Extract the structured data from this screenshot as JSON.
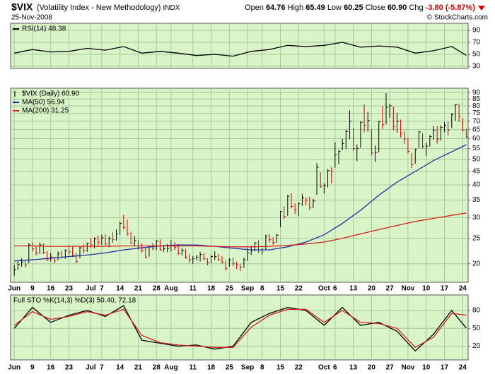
{
  "header": {
    "symbol": "$VIX",
    "name": "(Volatility Index - New Methodology)",
    "exchange": "INDX",
    "date": "25-Nov-2008",
    "quote": [
      [
        "Open",
        "64.76"
      ],
      [
        "High",
        "65.49"
      ],
      [
        "Low",
        "60.25"
      ],
      [
        "Close",
        "60.90"
      ],
      [
        "Chg",
        "-3.80 (-5.87%)"
      ]
    ],
    "copyright": "© StockCharts.com"
  },
  "chart_data": [
    {
      "type": "line",
      "ylim": [
        26.5,
        101.8
      ],
      "yticks": [
        30,
        50,
        70,
        90
      ],
      "grid": true,
      "series": [
        {
          "name": "RSI(14) 48.38",
          "color": "#000000",
          "x": [
            0,
            5,
            10,
            15,
            20,
            25,
            30,
            35,
            40,
            45,
            50,
            55,
            60,
            65,
            70,
            75,
            80,
            85,
            90,
            95,
            100,
            105,
            110,
            115,
            120,
            124
          ],
          "values": [
            52,
            58,
            54,
            55,
            60,
            57,
            63,
            52,
            55,
            52,
            48,
            50,
            47,
            55,
            58,
            65,
            63,
            65,
            70,
            62,
            64,
            62,
            52,
            56,
            63,
            48.38
          ]
        }
      ]
    },
    {
      "type": "ohlc",
      "log_scale": true,
      "grid": true,
      "ylim": [
        17,
        93.5
      ],
      "yticks": [
        20,
        25,
        30,
        35,
        40,
        45,
        50,
        55,
        60,
        65,
        70,
        75,
        80,
        85,
        90
      ],
      "xlim": [
        -1,
        124.5
      ],
      "xticks": [
        {
          "value": 0,
          "label": "Jun"
        },
        {
          "value": 5,
          "label": "9"
        },
        {
          "value": 10,
          "label": "16"
        },
        {
          "value": 15,
          "label": "23"
        },
        {
          "value": 21,
          "label": "Jul"
        },
        {
          "value": 24,
          "label": "7"
        },
        {
          "value": 29,
          "label": "14"
        },
        {
          "value": 34,
          "label": "21"
        },
        {
          "value": 39,
          "label": "28"
        },
        {
          "value": 43,
          "label": "Aug"
        },
        {
          "value": 49,
          "label": "11"
        },
        {
          "value": 54,
          "label": "18"
        },
        {
          "value": 59,
          "label": "25"
        },
        {
          "value": 64,
          "label": "Sep"
        },
        {
          "value": 68,
          "label": "8"
        },
        {
          "value": 73,
          "label": "15"
        },
        {
          "value": 78,
          "label": "22"
        },
        {
          "value": 85,
          "label": "Oct"
        },
        {
          "value": 88,
          "label": "6"
        },
        {
          "value": 93,
          "label": "13"
        },
        {
          "value": 98,
          "label": "20"
        },
        {
          "value": 103,
          "label": "27"
        },
        {
          "value": 108,
          "label": "Nov"
        },
        {
          "value": 113,
          "label": "10"
        },
        {
          "value": 118,
          "label": "17"
        },
        {
          "value": 123,
          "label": "24"
        }
      ],
      "ohlc": {
        "name": "$VIX (Daily) 60.90",
        "up_color": "#000000",
        "down_color": "#cc0000",
        "high": [
          19.8,
          20.4,
          21.0,
          20.5,
          24.0,
          24.2,
          23.5,
          24.1,
          23.9,
          22.3,
          22.0,
          21.3,
          22.3,
          22.4,
          22.7,
          23.5,
          23.3,
          22.0,
          23.4,
          23.8,
          24.1,
          25.0,
          25.2,
          25.6,
          25.8,
          25.9,
          25.4,
          26.4,
          27.1,
          29.0,
          30.8,
          29.5,
          26.5,
          25.5,
          24.6,
          23.9,
          23.1,
          23.5,
          24.0,
          24.6,
          24.8,
          23.6,
          23.8,
          24.6,
          24.2,
          23.8,
          23.0,
          22.8,
          21.8,
          21.4,
          21.6,
          22.2,
          22.0,
          21.0,
          21.6,
          22.3,
          21.8,
          21.4,
          20.6,
          21.0,
          21.1,
          20.4,
          20.0,
          21.1,
          23.0,
          23.4,
          24.2,
          24.6,
          23.0,
          25.8,
          26.0,
          25.2,
          26.0,
          31.8,
          33.1,
          36.6,
          37.2,
          34.0,
          34.3,
          37.0,
          35.8,
          36.0,
          35.4,
          48.4,
          44.6,
          40.6,
          45.9,
          46.8,
          58.2,
          54.2,
          60.0,
          64.9,
          76.9,
          66.0,
          57.0,
          69.9,
          81.2,
          75.9,
          65.2,
          56.5,
          70.0,
          80.1,
          89.5,
          81.5,
          79.6,
          75.4,
          71.0,
          64.0,
          60.5,
          53.0,
          55.0,
          64.2,
          62.8,
          58.0,
          62.0,
          67.0,
          67.0,
          67.5,
          69.5,
          69.7,
          75.0,
          81.5,
          81.5,
          72.0,
          65.49
        ],
        "low": [
          18.0,
          18.9,
          19.5,
          19.3,
          20.1,
          22.2,
          21.5,
          21.8,
          21.8,
          20.5,
          20.4,
          20.1,
          20.6,
          20.9,
          20.9,
          21.5,
          21.2,
          20.1,
          21.0,
          21.9,
          22.2,
          23.0,
          22.9,
          23.4,
          23.6,
          23.4,
          23.1,
          24.0,
          24.5,
          25.8,
          27.0,
          25.6,
          23.8,
          23.5,
          22.6,
          22.0,
          21.0,
          21.3,
          22.5,
          22.6,
          22.4,
          22.2,
          22.1,
          22.3,
          22.5,
          21.6,
          21.5,
          20.9,
          20.2,
          20.0,
          20.6,
          20.4,
          20.6,
          19.7,
          20.1,
          20.7,
          20.5,
          20.0,
          18.8,
          19.5,
          19.6,
          19.1,
          18.8,
          19.3,
          20.5,
          21.6,
          22.3,
          22.0,
          21.7,
          22.5,
          24.1,
          23.6,
          24.0,
          27.6,
          29.6,
          30.5,
          32.5,
          31.0,
          30.4,
          33.2,
          33.4,
          32.0,
          32.6,
          36.6,
          38.9,
          37.0,
          39.1,
          40.6,
          46.5,
          47.9,
          54.3,
          54.8,
          59.8,
          54.0,
          49.3,
          55.4,
          63.5,
          63.8,
          51.8,
          48.9,
          53.2,
          65.3,
          68.0,
          72.1,
          64.5,
          63.3,
          60.6,
          57.3,
          52.7,
          46.3,
          48.2,
          55.2,
          55.0,
          51.5,
          56.0,
          59.5,
          57.5,
          59.0,
          63.5,
          61.7,
          66.0,
          70.2,
          69.6,
          64.0,
          60.25
        ],
        "close": [
          19.0,
          19.9,
          20.3,
          19.8,
          23.6,
          22.8,
          22.0,
          23.6,
          22.1,
          20.7,
          21.2,
          20.5,
          21.8,
          21.2,
          22.4,
          22.2,
          21.6,
          20.4,
          23.0,
          22.5,
          23.9,
          23.6,
          24.9,
          24.2,
          25.1,
          23.8,
          24.9,
          24.7,
          26.0,
          28.5,
          27.5,
          26.0,
          24.0,
          24.5,
          23.0,
          22.5,
          21.2,
          23.2,
          22.9,
          24.4,
          22.6,
          22.8,
          22.9,
          23.5,
          23.1,
          21.9,
          22.5,
          21.2,
          20.7,
          20.9,
          21.2,
          21.7,
          20.9,
          20.2,
          21.3,
          21.3,
          20.7,
          20.3,
          19.2,
          20.7,
          20.0,
          19.8,
          19.4,
          20.7,
          21.99,
          22.5,
          24.0,
          22.6,
          22.6,
          25.5,
          24.7,
          24.1,
          25.7,
          31.7,
          30.3,
          36.2,
          33.1,
          32.1,
          33.9,
          35.7,
          35.0,
          32.8,
          34.7,
          46.7,
          39.4,
          39.8,
          45.3,
          45.1,
          52.1,
          53.7,
          57.5,
          63.9,
          69.9,
          54.99,
          55.1,
          69.3,
          67.6,
          70.3,
          52.97,
          53.1,
          69.7,
          67.8,
          79.1,
          80.1,
          66.96,
          69.96,
          62.9,
          59.9,
          53.7,
          47.7,
          54.6,
          63.7,
          56.1,
          56.2,
          61.2,
          64.7,
          59.8,
          66.3,
          67.6,
          64.7,
          74.3,
          80.9,
          72.7,
          64.7,
          60.9
        ]
      },
      "series": [
        {
          "name": "MA(50) 56.94",
          "color": "#1f2f9f",
          "x": [
            0,
            5,
            10,
            15,
            20,
            25,
            30,
            35,
            40,
            45,
            50,
            55,
            60,
            65,
            70,
            75,
            80,
            85,
            90,
            95,
            100,
            105,
            110,
            115,
            120,
            124
          ],
          "values": [
            20.5,
            20.7,
            21.0,
            21.3,
            21.6,
            22.0,
            22.6,
            23.0,
            23.4,
            23.6,
            23.6,
            23.3,
            22.9,
            22.6,
            22.6,
            23.2,
            24.2,
            25.8,
            28.5,
            32.0,
            36.5,
            41.0,
            45.0,
            49.5,
            53.5,
            56.94
          ]
        },
        {
          "name": "MA(200) 31.25",
          "color": "#d42020",
          "x": [
            0,
            5,
            10,
            15,
            20,
            25,
            30,
            35,
            40,
            45,
            50,
            55,
            60,
            65,
            70,
            75,
            80,
            85,
            90,
            95,
            100,
            105,
            110,
            115,
            120,
            124
          ],
          "values": [
            23.4,
            23.4,
            23.3,
            23.3,
            23.3,
            23.3,
            23.4,
            23.4,
            23.4,
            23.4,
            23.4,
            23.3,
            23.2,
            23.2,
            23.3,
            23.5,
            23.8,
            24.2,
            25.0,
            26.0,
            27.0,
            28.0,
            29.0,
            29.8,
            30.6,
            31.25
          ]
        }
      ]
    },
    {
      "type": "line",
      "title": "Full STO %K(14,3) %D(3) 50.40, 72.18",
      "ylim": [
        -3,
        106
      ],
      "yticks": [
        20,
        50,
        80
      ],
      "grid": true,
      "series": [
        {
          "color": "#000000",
          "x": [
            0,
            5,
            10,
            15,
            20,
            25,
            30,
            35,
            40,
            45,
            50,
            55,
            60,
            65,
            70,
            75,
            80,
            85,
            90,
            95,
            100,
            105,
            110,
            115,
            120,
            124
          ],
          "values": [
            50,
            85,
            60,
            72,
            80,
            70,
            88,
            30,
            25,
            20,
            22,
            15,
            20,
            60,
            75,
            85,
            80,
            55,
            85,
            55,
            60,
            45,
            12,
            40,
            80,
            50.4
          ]
        },
        {
          "color": "#d42020",
          "x": [
            0,
            5,
            10,
            15,
            20,
            25,
            30,
            35,
            40,
            45,
            50,
            55,
            60,
            65,
            70,
            75,
            80,
            85,
            90,
            95,
            100,
            105,
            110,
            115,
            120,
            124
          ],
          "values": [
            55,
            78,
            65,
            70,
            78,
            72,
            82,
            38,
            26,
            22,
            20,
            18,
            18,
            52,
            72,
            82,
            82,
            60,
            80,
            60,
            58,
            50,
            18,
            35,
            75,
            72.18
          ]
        }
      ]
    }
  ]
}
